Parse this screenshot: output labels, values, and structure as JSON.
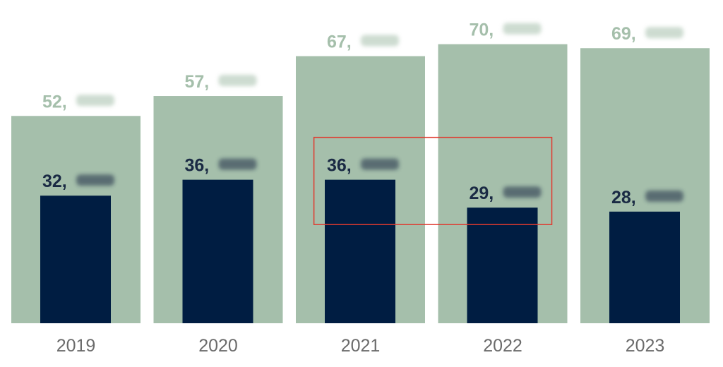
{
  "chart_data": {
    "type": "bar",
    "title": "",
    "xlabel": "",
    "ylabel": "",
    "categories": [
      "2019",
      "2020",
      "2021",
      "2022",
      "2023"
    ],
    "ylim": [
      0,
      74000
    ],
    "grid": false,
    "legend": "none",
    "series": [
      {
        "values": [
          52000,
          57000,
          67000,
          70000,
          69000
        ],
        "labels": [
          "52,",
          "57,",
          "67,",
          "70,",
          "69,"
        ],
        "color": "#a5bfab",
        "label_color": "#a5bfab",
        "style": "wide-background"
      },
      {
        "values": [
          32000,
          36000,
          36000,
          29000,
          28000
        ],
        "labels": [
          "32,",
          "36,",
          "36,",
          "29,",
          "28,"
        ],
        "color": "#001d42",
        "label_color": "#1a2a44",
        "style": "narrow-overlay"
      }
    ],
    "label_suffix_obscured": true,
    "annotation": {
      "type": "highlight-box",
      "color": "#e03a2f",
      "from_category": "2021",
      "to_category": "2022",
      "series": "narrow-overlay"
    },
    "tick_color": "#6b6b6b"
  }
}
